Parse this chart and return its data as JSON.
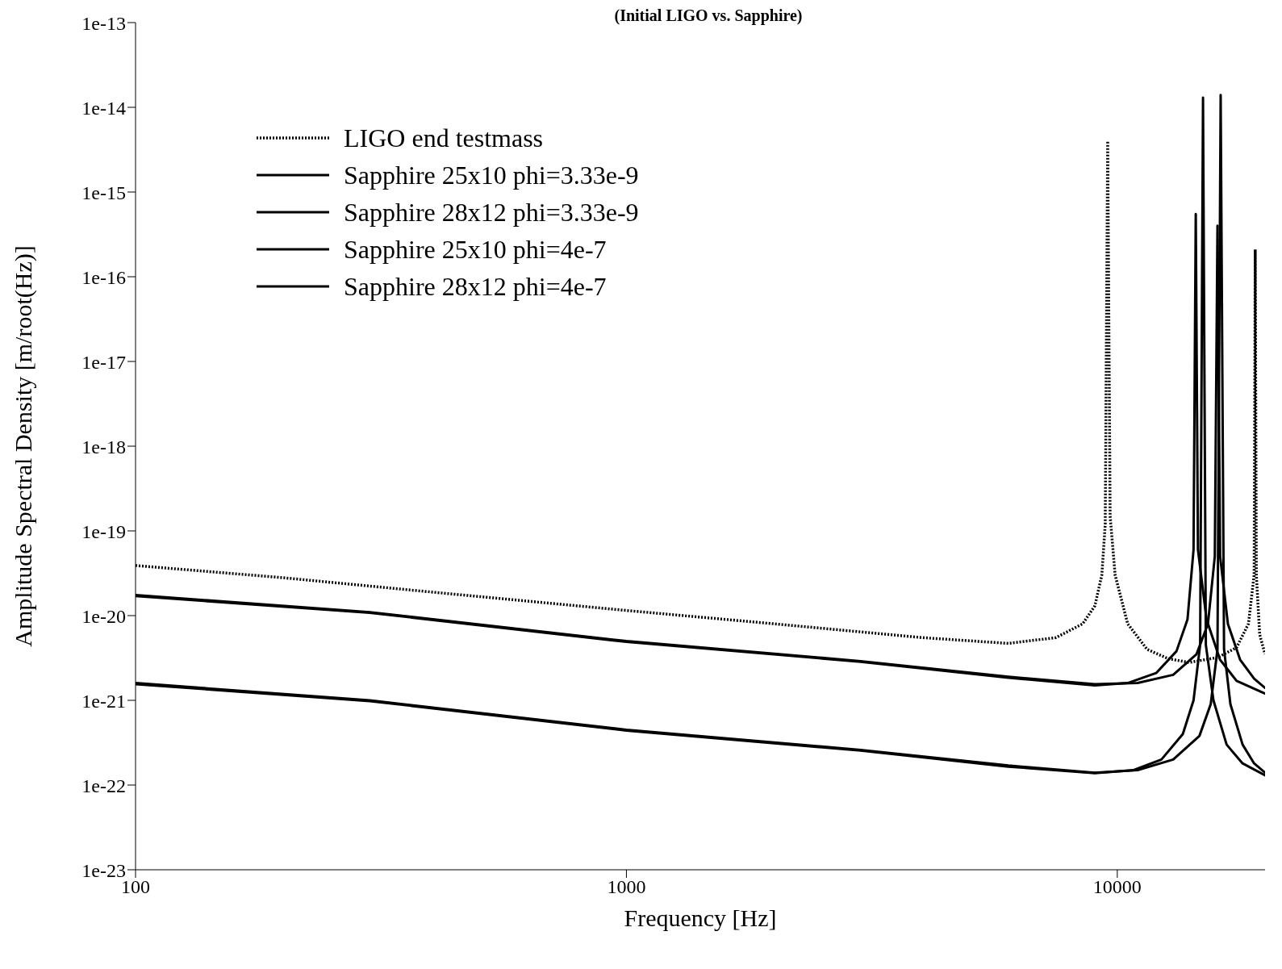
{
  "chart_data": {
    "type": "line",
    "subtitle": "(Initial LIGO vs. Sapphire)",
    "xlabel": "Frequency [Hz]",
    "ylabel": "Amplitude Spectral Density [m/root(Hz)]",
    "log": "xy",
    "xlim": [
      100,
      20000
    ],
    "xticks": [
      100,
      1000,
      10000
    ],
    "ylim": [
      1e-23,
      1e-13
    ],
    "yticks": [
      1e-23,
      1e-22,
      1e-21,
      1e-20,
      1e-19,
      1e-18,
      1e-17,
      1e-16,
      1e-15,
      1e-14,
      1e-13
    ],
    "grid": false,
    "legend": "top left",
    "marker": "none",
    "series": [
      {
        "name": "LIGO end testmass",
        "color": "#000000",
        "line_style": "dotted",
        "x": [
          100,
          200,
          400,
          1000,
          2000,
          4000,
          6000,
          7500,
          8500,
          9000,
          9300,
          9450,
          9560,
          9670,
          9900,
          10500,
          11500,
          12700,
          14000,
          16000,
          17500,
          18500,
          19000,
          19100,
          19200,
          19500,
          20000
        ],
        "values": [
          3.9e-20,
          2.8e-20,
          1.9e-20,
          1.15e-20,
          8e-21,
          5.5e-21,
          4.7e-21,
          5.5e-21,
          8e-21,
          1.3e-20,
          3e-20,
          1.2e-19,
          4e-15,
          1.5e-19,
          3e-20,
          8e-21,
          4e-21,
          3.1e-21,
          2.8e-21,
          3.2e-21,
          4.2e-21,
          8e-21,
          3e-20,
          2.1e-16,
          3e-20,
          6e-21,
          3.5e-21
        ]
      },
      {
        "name": "Sapphire 25x10 phi=3.33e-9",
        "color": "#000000",
        "line_style": "solid",
        "x": [
          100,
          300,
          1000,
          3000,
          6000,
          9000,
          11000,
          13000,
          14700,
          15500,
          16000,
          16240,
          16500,
          17000,
          18000,
          19000,
          20000
        ],
        "values": [
          1.6e-21,
          1e-21,
          4.5e-22,
          2.6e-22,
          1.7e-22,
          1.4e-22,
          1.5e-22,
          2e-22,
          3.8e-22,
          9e-22,
          4e-21,
          1.4e-14,
          4e-21,
          9e-22,
          3e-22,
          1.8e-22,
          1.4e-22
        ]
      },
      {
        "name": "Sapphire 28x12 phi=3.33e-9",
        "color": "#000000",
        "line_style": "solid",
        "x": [
          100,
          300,
          1000,
          3000,
          6000,
          9000,
          10800,
          12300,
          13600,
          14300,
          14750,
          14950,
          15150,
          15700,
          16700,
          18000,
          20000
        ],
        "values": [
          1.55e-21,
          9.8e-22,
          4.4e-22,
          2.55e-22,
          1.65e-22,
          1.38e-22,
          1.5e-22,
          2e-22,
          4e-22,
          1e-21,
          4.5e-21,
          1.3e-14,
          4.5e-21,
          1e-21,
          3e-22,
          1.8e-22,
          1.3e-22
        ]
      },
      {
        "name": "Sapphire 25x10 phi=4e-7",
        "color": "#000000",
        "line_style": "solid",
        "x": [
          100,
          300,
          1000,
          3000,
          6000,
          9000,
          11000,
          13000,
          14500,
          15300,
          15800,
          16000,
          16200,
          16800,
          17800,
          19000,
          20000
        ],
        "values": [
          1.75e-20,
          1.1e-20,
          5e-21,
          2.9e-21,
          1.9e-21,
          1.55e-21,
          1.6e-21,
          2e-21,
          3.5e-21,
          8e-21,
          5e-20,
          4e-16,
          5e-20,
          8e-21,
          3e-21,
          1.8e-21,
          1.4e-21
        ]
      },
      {
        "name": "Sapphire 28x12 phi=4e-7",
        "color": "#000000",
        "line_style": "solid",
        "x": [
          100,
          300,
          1000,
          3000,
          6000,
          9000,
          10500,
          12000,
          13200,
          13900,
          14300,
          14450,
          14600,
          15200,
          16200,
          17500,
          20000
        ],
        "values": [
          1.7e-20,
          1.08e-20,
          4.9e-21,
          2.85e-21,
          1.85e-21,
          1.5e-21,
          1.6e-21,
          2.1e-21,
          3.8e-21,
          9e-21,
          6e-20,
          5.5e-16,
          6e-20,
          9e-21,
          3e-21,
          1.7e-21,
          1.2e-21
        ]
      }
    ]
  }
}
